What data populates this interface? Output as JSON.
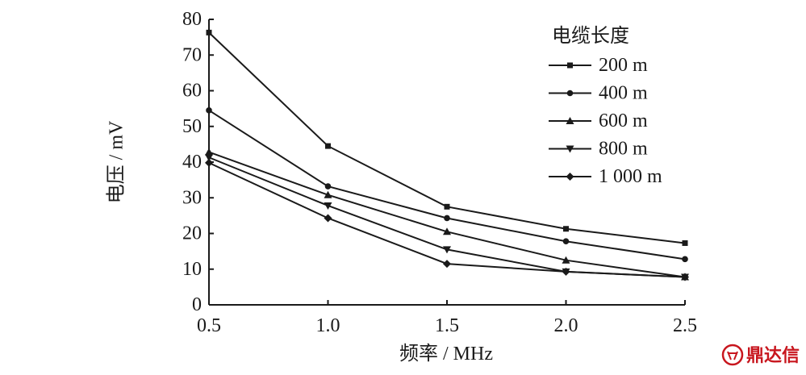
{
  "chart_data": {
    "type": "line",
    "title": "",
    "xlabel": "频率 / MHz",
    "ylabel": "电压 / mV",
    "xlim": [
      0.5,
      2.5
    ],
    "ylim": [
      0,
      80
    ],
    "x": [
      0.5,
      1.0,
      1.5,
      2.0,
      2.5
    ],
    "x_tick_labels": [
      "0.5",
      "1.0",
      "1.5",
      "2.0",
      "2.5"
    ],
    "y_tick_labels": [
      "0",
      "10",
      "20",
      "30",
      "40",
      "50",
      "60",
      "70",
      "80"
    ],
    "grid": false,
    "legend": {
      "title": "电缆长度",
      "position": "top-right"
    },
    "series": [
      {
        "name": "200 m",
        "marker": "square",
        "values": [
          76.3,
          44.5,
          27.5,
          21.3,
          17.3
        ]
      },
      {
        "name": "400 m",
        "marker": "circle",
        "values": [
          54.5,
          33.2,
          24.3,
          17.8,
          12.8
        ]
      },
      {
        "name": "600 m",
        "marker": "triangle-up",
        "values": [
          42.8,
          30.8,
          20.5,
          12.5,
          7.8
        ]
      },
      {
        "name": "800 m",
        "marker": "triangle-down",
        "values": [
          41.3,
          27.8,
          15.5,
          9.3,
          7.8
        ]
      },
      {
        "name": "1 000 m",
        "marker": "diamond",
        "values": [
          39.8,
          24.3,
          11.5,
          9.3,
          7.8
        ]
      }
    ]
  },
  "watermark": {
    "text": "鼎达信",
    "icon": "brand-logo-icon",
    "color": "#c8161e"
  }
}
